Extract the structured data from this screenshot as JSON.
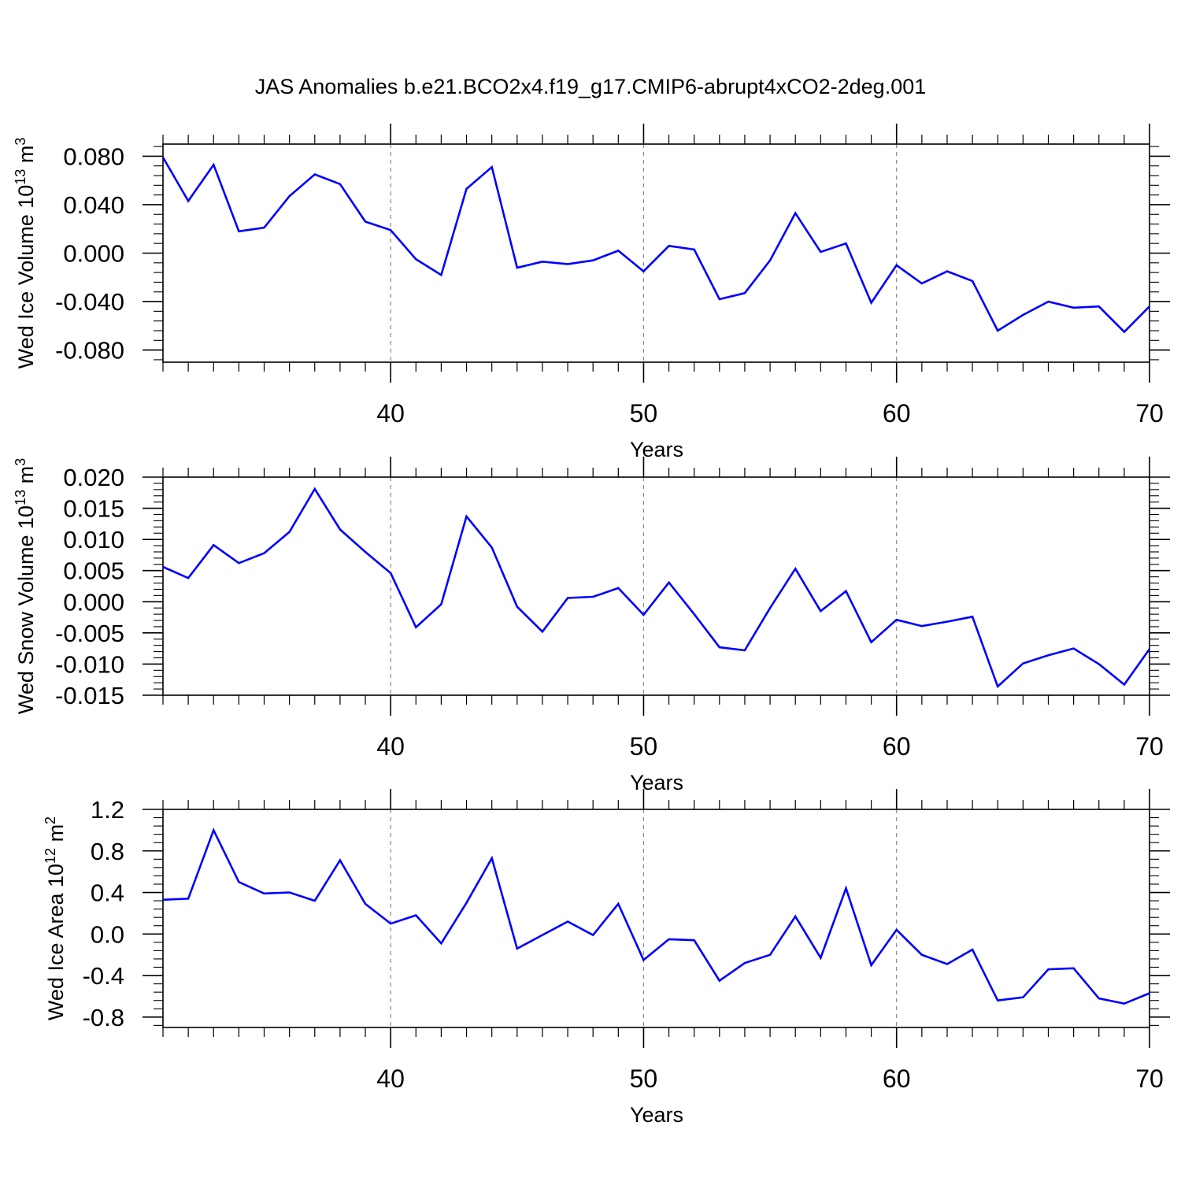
{
  "title": "JAS Anomalies b.e21.BCO2x4.f19_g17.CMIP6-abrupt4xCO2-2deg.001",
  "colors": {
    "line": "#0000ff",
    "axis": "#000000",
    "grid": "#888888"
  },
  "chart_data": [
    {
      "type": "line",
      "ylabel": {
        "text": "Wed Ice Volume 10",
        "exp": "13",
        "unit": " m",
        "unit_exp": "3"
      },
      "xlabel": "Years",
      "xlim": [
        31,
        70
      ],
      "ylim": [
        -0.09,
        0.09
      ],
      "xticks": [
        40,
        50,
        60,
        70
      ],
      "yticks": [
        -0.08,
        -0.04,
        0.0,
        0.04,
        0.08
      ],
      "ytick_labels": [
        "-0.080",
        "-0.040",
        "0.000",
        "0.040",
        "0.080"
      ],
      "series": [
        {
          "name": "Wed Ice Volume",
          "x": [
            31,
            32,
            33,
            34,
            35,
            36,
            37,
            38,
            39,
            40,
            41,
            42,
            43,
            44,
            45,
            46,
            47,
            48,
            49,
            50,
            51,
            52,
            53,
            54,
            55,
            56,
            57,
            58,
            59,
            60,
            61,
            62,
            63,
            64,
            65,
            66,
            67,
            68,
            69,
            70
          ],
          "values": [
            0.079,
            0.043,
            0.073,
            0.018,
            0.021,
            0.047,
            0.065,
            0.057,
            0.026,
            0.019,
            -0.005,
            -0.018,
            0.053,
            0.071,
            -0.012,
            -0.007,
            -0.009,
            -0.006,
            0.002,
            -0.015,
            0.006,
            0.003,
            -0.038,
            -0.033,
            -0.006,
            0.033,
            0.001,
            0.008,
            -0.041,
            -0.01,
            -0.025,
            -0.015,
            -0.023,
            -0.064,
            -0.051,
            -0.04,
            -0.045,
            -0.044,
            -0.065,
            -0.044
          ]
        }
      ]
    },
    {
      "type": "line",
      "ylabel": {
        "text": "Wed Snow Volume 10",
        "exp": "13",
        "unit": " m",
        "unit_exp": "3"
      },
      "xlabel": "Years",
      "xlim": [
        31,
        70
      ],
      "ylim": [
        -0.015,
        0.02
      ],
      "xticks": [
        40,
        50,
        60,
        70
      ],
      "yticks": [
        -0.015,
        -0.01,
        -0.005,
        0.0,
        0.005,
        0.01,
        0.015,
        0.02
      ],
      "ytick_labels": [
        "-0.015",
        "-0.010",
        "-0.005",
        "0.000",
        "0.005",
        "0.010",
        "0.015",
        "0.020"
      ],
      "series": [
        {
          "name": "Wed Snow Volume",
          "x": [
            31,
            32,
            33,
            34,
            35,
            36,
            37,
            38,
            39,
            40,
            41,
            42,
            43,
            44,
            45,
            46,
            47,
            48,
            49,
            50,
            51,
            52,
            53,
            54,
            55,
            56,
            57,
            58,
            59,
            60,
            61,
            62,
            63,
            64,
            65,
            66,
            67,
            68,
            69,
            70
          ],
          "values": [
            0.0056,
            0.0038,
            0.0091,
            0.0062,
            0.0078,
            0.0112,
            0.0181,
            0.0116,
            0.008,
            0.0046,
            -0.0041,
            -0.0004,
            0.0137,
            0.0087,
            -0.0008,
            -0.0048,
            0.0006,
            0.0008,
            0.0022,
            -0.0021,
            0.0031,
            -0.002,
            -0.0073,
            -0.0078,
            -0.001,
            0.0053,
            -0.0015,
            0.0017,
            -0.0065,
            -0.0029,
            -0.0039,
            -0.0032,
            -0.0024,
            -0.0136,
            -0.0099,
            -0.0086,
            -0.0075,
            -0.01,
            -0.0133,
            -0.0076
          ]
        }
      ]
    },
    {
      "type": "line",
      "ylabel": {
        "text": "Wed Ice Area 10",
        "exp": "12",
        "unit": " m",
        "unit_exp": "2"
      },
      "xlabel": "Years",
      "xlim": [
        31,
        70
      ],
      "ylim": [
        -0.9,
        1.2
      ],
      "xticks": [
        40,
        50,
        60,
        70
      ],
      "yticks": [
        -0.8,
        -0.4,
        0.0,
        0.4,
        0.8,
        1.2
      ],
      "ytick_labels": [
        "-0.8",
        "-0.4",
        "0.0",
        "0.4",
        "0.8",
        "1.2"
      ],
      "series": [
        {
          "name": "Wed Ice Area",
          "x": [
            31,
            32,
            33,
            34,
            35,
            36,
            37,
            38,
            39,
            40,
            41,
            42,
            43,
            44,
            45,
            46,
            47,
            48,
            49,
            50,
            51,
            52,
            53,
            54,
            55,
            56,
            57,
            58,
            59,
            60,
            61,
            62,
            63,
            64,
            65,
            66,
            67,
            68,
            69,
            70
          ],
          "values": [
            0.33,
            0.34,
            1.0,
            0.5,
            0.39,
            0.4,
            0.32,
            0.71,
            0.29,
            0.1,
            0.18,
            -0.09,
            0.3,
            0.73,
            -0.14,
            -0.01,
            0.12,
            -0.01,
            0.29,
            -0.25,
            -0.05,
            -0.06,
            -0.45,
            -0.28,
            -0.2,
            0.17,
            -0.23,
            0.44,
            -0.3,
            0.04,
            -0.2,
            -0.29,
            -0.15,
            -0.64,
            -0.61,
            -0.34,
            -0.33,
            -0.62,
            -0.67,
            -0.57
          ]
        }
      ]
    }
  ]
}
